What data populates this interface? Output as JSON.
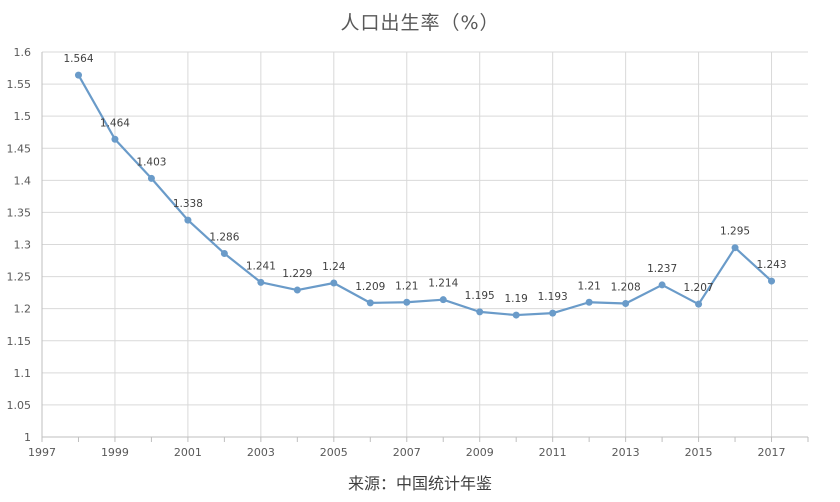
{
  "chart_data": {
    "type": "line",
    "title": "人口出生率（%）",
    "source": "来源：中国统计年鉴",
    "x": [
      1998,
      1999,
      2000,
      2001,
      2002,
      2003,
      2004,
      2005,
      2006,
      2007,
      2008,
      2009,
      2010,
      2011,
      2012,
      2013,
      2014,
      2015,
      2016,
      2017
    ],
    "series": [
      {
        "values": [
          1.564,
          1.464,
          1.403,
          1.338,
          1.286,
          1.241,
          1.229,
          1.24,
          1.209,
          1.21,
          1.214,
          1.195,
          1.19,
          1.193,
          1.21,
          1.208,
          1.237,
          1.207,
          1.295,
          1.243
        ],
        "labels": [
          "1.564",
          "1.464",
          "1.403",
          "1.338",
          "1.286",
          "1.241",
          "1.229",
          "1.24",
          "1.209",
          "1.21",
          "1.214",
          "1.195",
          "1.19",
          "1.193",
          "1.21",
          "1.208",
          "1.237",
          "1.207",
          "1.295",
          "1.243"
        ],
        "color": "#6a9bc9"
      }
    ],
    "x_ticks": [
      "1997",
      "1999",
      "2001",
      "2003",
      "2005",
      "2007",
      "2009",
      "2011",
      "2013",
      "2015",
      "2017"
    ],
    "y_ticks": [
      "1",
      "1.05",
      "1.1",
      "1.15",
      "1.2",
      "1.25",
      "1.3",
      "1.35",
      "1.4",
      "1.45",
      "1.5",
      "1.55",
      "1.6"
    ],
    "xlim": [
      1997,
      2018
    ],
    "ylim": [
      1,
      1.6
    ],
    "grid": true,
    "legend": "none"
  }
}
